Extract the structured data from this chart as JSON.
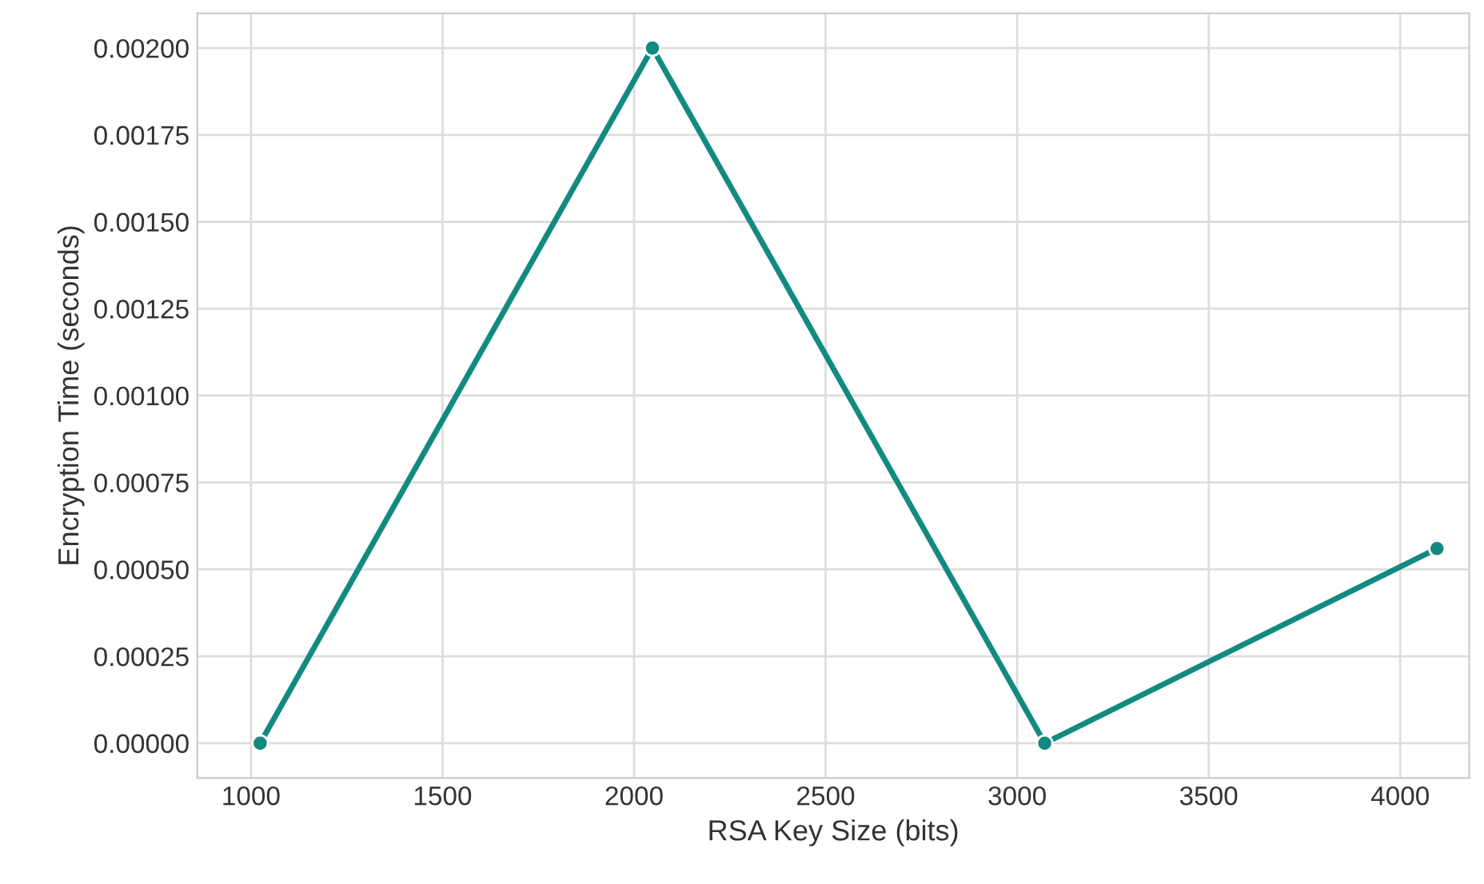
{
  "chart_data": {
    "type": "line",
    "xlabel": "RSA Key Size (bits)",
    "ylabel": "Encryption Time (seconds)",
    "x": [
      1024,
      2048,
      3072,
      4096
    ],
    "series": [
      {
        "color": "#138a80",
        "values": [
          0,
          0.002,
          0,
          0.00056
        ]
      }
    ],
    "xlim": [
      860,
      4180
    ],
    "xticks": [
      1000,
      1500,
      2000,
      2500,
      3000,
      3500,
      4000
    ],
    "ylim": [
      -0.0001,
      0.0021
    ],
    "yticks": [
      {
        "value": 0,
        "label": "0.00000"
      },
      {
        "value": 0.00025,
        "label": "0.00025"
      },
      {
        "value": 0.0005,
        "label": "0.00050"
      },
      {
        "value": 0.00075,
        "label": "0.00075"
      },
      {
        "value": 0.001,
        "label": "0.00100"
      },
      {
        "value": 0.00125,
        "label": "0.00125"
      },
      {
        "value": 0.0015,
        "label": "0.00150"
      },
      {
        "value": 0.00175,
        "label": "0.00175"
      },
      {
        "value": 0.002,
        "label": "0.00200"
      }
    ],
    "grid": true,
    "marker": "circle",
    "line_style": "solid"
  }
}
